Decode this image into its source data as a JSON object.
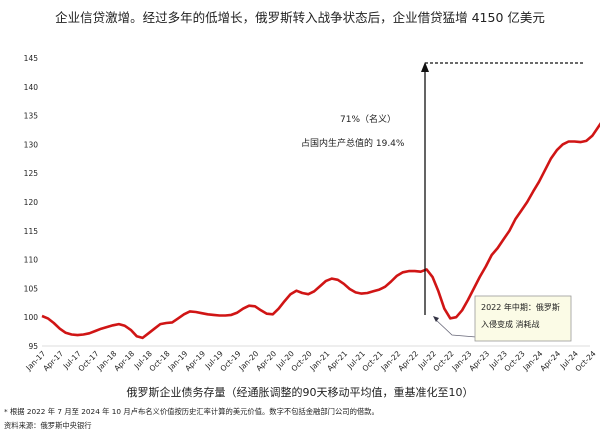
{
  "chart_data": {
    "type": "line",
    "title": "企业信贷激增。经过多年的低增长，俄罗斯转入战争状态后，企业借贷猛增 4150 亿美元",
    "xlabel": "俄罗斯企业债务存量（经通胀调整的90天移动平均值，重基准化至10）",
    "ylabel": "",
    "ylim": [
      95,
      145
    ],
    "yticks": [
      95,
      100,
      105,
      110,
      115,
      120,
      125,
      130,
      135,
      140,
      145
    ],
    "xticks": [
      "Jan-17",
      "Apr-17",
      "Jul-17",
      "Oct-17",
      "Jan-18",
      "Apr-18",
      "Jul-18",
      "Oct-18",
      "Jan-19",
      "Apr-19",
      "Jul-19",
      "Oct-19",
      "Jan-20",
      "Apr-20",
      "Jul-20",
      "Oct-20",
      "Jan-21",
      "Apr-21",
      "Jul-21",
      "Oct-21",
      "Jan-22",
      "Apr-22",
      "Jul-22",
      "Oct-22",
      "Jan-23",
      "Apr-23",
      "Jul-23",
      "Oct-23",
      "Jan-24",
      "Apr-24",
      "Jul-24",
      "Oct-24"
    ],
    "grid": false,
    "series": [
      {
        "name": "俄罗斯企业债务存量",
        "color": "#d01515",
        "frequency": "monthly from Jan-17",
        "values": [
          100.2,
          99.8,
          99.0,
          98.0,
          97.3,
          97.0,
          96.9,
          97.0,
          97.2,
          97.6,
          98.0,
          98.3,
          98.6,
          98.8,
          98.5,
          97.8,
          96.7,
          96.4,
          97.2,
          98.0,
          98.8,
          99.0,
          99.1,
          99.8,
          100.5,
          101.0,
          100.9,
          100.7,
          100.5,
          100.4,
          100.3,
          100.3,
          100.4,
          100.8,
          101.5,
          102.0,
          101.9,
          101.2,
          100.6,
          100.5,
          101.5,
          102.8,
          104.0,
          104.6,
          104.2,
          104.0,
          104.5,
          105.4,
          106.3,
          106.7,
          106.5,
          105.8,
          104.9,
          104.3,
          104.1,
          104.2,
          104.5,
          104.8,
          105.3,
          106.2,
          107.2,
          107.8,
          108.0,
          108.0,
          107.9,
          108.3,
          107.0,
          104.5,
          101.5,
          99.8,
          100.0,
          101.2,
          103.0,
          105.0,
          107.0,
          108.8,
          110.8,
          112.0,
          113.5,
          115.0,
          117.0,
          118.5,
          120.0,
          121.8,
          123.5,
          125.5,
          127.5,
          129.0,
          130.0,
          130.5,
          130.5,
          130.4,
          130.6,
          131.5,
          133.0,
          134.5,
          135.5,
          136.5,
          138.0,
          140.0,
          142.0,
          143.2
        ]
      }
    ],
    "annotations": {
      "growth_label": "71%（名义）",
      "gdp_label": "占国内生产总值的 19.4%",
      "callout_line1": "2022 年中期：俄罗斯",
      "callout_line2": "入侵变成  消耗战"
    }
  },
  "footnote": "* 根据 2022 年 7 月至 2024 年 10 月卢布名义价值按历史汇率计算的美元价值。数字不包括金融部门公司的借款。",
  "source": "资料来源：俄罗斯中央银行",
  "colors": {
    "line": "#d01515",
    "callout_bg": "#fbfbe6"
  }
}
